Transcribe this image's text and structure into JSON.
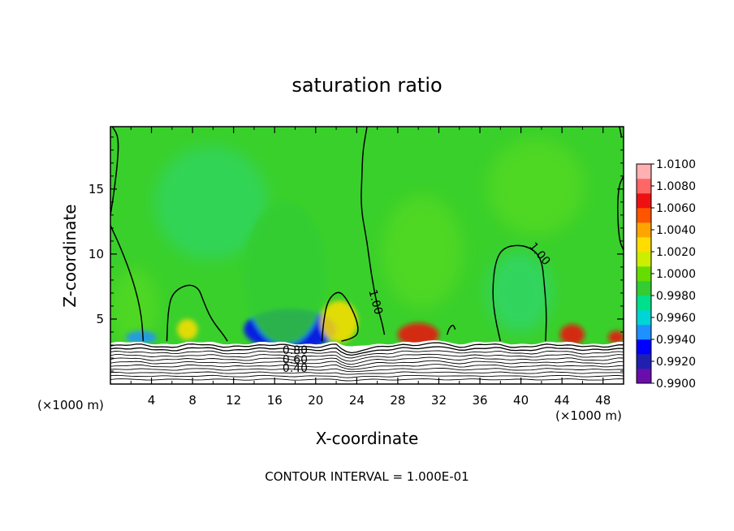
{
  "chart_data": {
    "type": "heatmap",
    "title": "saturation ratio",
    "xlabel": "X-coordinate",
    "ylabel": "Z-coordinate",
    "x_unit_left": "(×1000 m)",
    "x_unit_right": "(×1000 m)",
    "xlim": [
      0,
      50
    ],
    "ylim": [
      0,
      19.8
    ],
    "x_ticks": [
      {
        "value": 4,
        "label": "4"
      },
      {
        "value": 8,
        "label": "8"
      },
      {
        "value": 12,
        "label": "12"
      },
      {
        "value": 16,
        "label": "16"
      },
      {
        "value": 20,
        "label": "20"
      },
      {
        "value": 24,
        "label": "24"
      },
      {
        "value": 28,
        "label": "28"
      },
      {
        "value": 32,
        "label": "32"
      },
      {
        "value": 36,
        "label": "36"
      },
      {
        "value": 40,
        "label": "40"
      },
      {
        "value": 44,
        "label": "44"
      },
      {
        "value": 48,
        "label": "48"
      }
    ],
    "y_ticks": [
      {
        "value": 5,
        "label": "5"
      },
      {
        "value": 10,
        "label": "10"
      },
      {
        "value": 15,
        "label": "15"
      }
    ],
    "contour_labels": [
      {
        "text": "1.00",
        "x": 25.8,
        "z": 6.3,
        "angle": 75
      },
      {
        "text": "1.00",
        "x": 41.8,
        "z": 10.0,
        "angle": 50
      },
      {
        "text": "0.80",
        "x": 18.0,
        "z": 2.55,
        "angle": 0
      },
      {
        "text": "0.60",
        "x": 18.0,
        "z": 1.85,
        "angle": 0
      },
      {
        "text": "0.40",
        "x": 18.0,
        "z": 1.2,
        "angle": 0
      }
    ],
    "contour_interval_text": "CONTOUR INTERVAL = 1.000E-01",
    "colorbar": {
      "colors": [
        "#6a0dad",
        "#2020b0",
        "#0000ff",
        "#1e90ff",
        "#00d4d4",
        "#00e08a",
        "#33cc33",
        "#66dd00",
        "#ccee00",
        "#ffdd00",
        "#ffa500",
        "#ff5500",
        "#ee1111",
        "#ff6666",
        "#ffb0b0"
      ],
      "labels": [
        "0.9900",
        "0.9920",
        "0.9940",
        "0.9960",
        "0.9980",
        "1.0000",
        "1.0020",
        "1.0040",
        "1.0060",
        "1.0080",
        "1.0100"
      ],
      "values": [
        0.99,
        0.992,
        0.994,
        0.996,
        0.998,
        1.0,
        1.002,
        1.004,
        1.006,
        1.008,
        1.01
      ]
    },
    "features": [
      {
        "name": "low-ratio-core",
        "x": 17.5,
        "z": 4.2,
        "rx": 4.5,
        "rz": 1.6,
        "value": 0.9935
      },
      {
        "name": "low-ratio-plume",
        "x": 17.0,
        "z": 8.5,
        "rx": 4.0,
        "rz": 5.5,
        "value": 0.998
      },
      {
        "name": "low-ratio-left",
        "x": 3.0,
        "z": 3.6,
        "rx": 1.5,
        "rz": 0.5,
        "value": 0.994
      },
      {
        "name": "high-ratio-28-32",
        "x": 30.0,
        "z": 3.8,
        "rx": 2.0,
        "rz": 0.9,
        "value": 1.0065
      },
      {
        "name": "high-ratio-44-46",
        "x": 45.0,
        "z": 3.8,
        "rx": 1.2,
        "rz": 0.8,
        "value": 1.006
      },
      {
        "name": "high-ratio-right-edge",
        "x": 49.3,
        "z": 3.6,
        "rx": 0.8,
        "rz": 0.5,
        "value": 1.006
      },
      {
        "name": "moist-cell-22",
        "x": 22.3,
        "z": 4.8,
        "rx": 1.8,
        "rz": 1.6,
        "value": 1.003
      },
      {
        "name": "moist-cell-7",
        "x": 7.5,
        "z": 4.2,
        "rx": 1.0,
        "rz": 0.8,
        "value": 1.0025
      }
    ]
  }
}
